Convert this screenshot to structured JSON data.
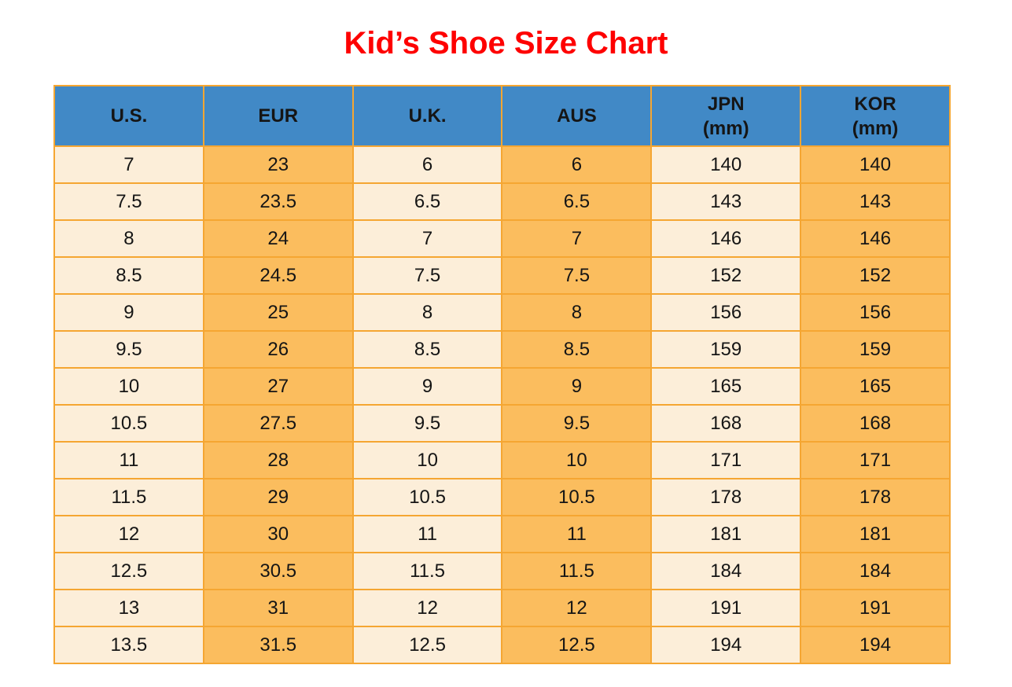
{
  "title": "Kid’s Shoe Size Chart",
  "colors": {
    "title-red": "#FE0000",
    "header-blue": "#4189C6",
    "cell-cream": "#FCEED9",
    "cell-orange": "#FBBD5E",
    "grid-orange": "#F5A632",
    "text-black": "#151515",
    "page-bg": "#FFFFFF"
  },
  "chart_data": {
    "type": "table",
    "title": "Kid’s Shoe Size Chart",
    "legend_position": "none",
    "grid": true,
    "columns": [
      {
        "id": "us",
        "label": "U.S.",
        "lines": [
          "U.S."
        ]
      },
      {
        "id": "eur",
        "label": "EUR",
        "lines": [
          "EUR"
        ]
      },
      {
        "id": "uk",
        "label": "U.K.",
        "lines": [
          "U.K."
        ]
      },
      {
        "id": "aus",
        "label": "AUS",
        "lines": [
          "AUS"
        ]
      },
      {
        "id": "jpn",
        "label": "JPN (mm)",
        "lines": [
          "JPN",
          "(mm)"
        ]
      },
      {
        "id": "kor",
        "label": "KOR (mm)",
        "lines": [
          "KOR",
          "(mm)"
        ]
      }
    ],
    "rows": [
      [
        "7",
        "23",
        "6",
        "6",
        "140",
        "140"
      ],
      [
        "7.5",
        "23.5",
        "6.5",
        "6.5",
        "143",
        "143"
      ],
      [
        "8",
        "24",
        "7",
        "7",
        "146",
        "146"
      ],
      [
        "8.5",
        "24.5",
        "7.5",
        "7.5",
        "152",
        "152"
      ],
      [
        "9",
        "25",
        "8",
        "8",
        "156",
        "156"
      ],
      [
        "9.5",
        "26",
        "8.5",
        "8.5",
        "159",
        "159"
      ],
      [
        "10",
        "27",
        "9",
        "9",
        "165",
        "165"
      ],
      [
        "10.5",
        "27.5",
        "9.5",
        "9.5",
        "168",
        "168"
      ],
      [
        "11",
        "28",
        "10",
        "10",
        "171",
        "171"
      ],
      [
        "11.5",
        "29",
        "10.5",
        "10.5",
        "178",
        "178"
      ],
      [
        "12",
        "30",
        "11",
        "11",
        "181",
        "181"
      ],
      [
        "12.5",
        "30.5",
        "11.5",
        "11.5",
        "184",
        "184"
      ],
      [
        "13",
        "31",
        "12",
        "12",
        "191",
        "191"
      ],
      [
        "13.5",
        "31.5",
        "12.5",
        "12.5",
        "194",
        "194"
      ]
    ]
  }
}
